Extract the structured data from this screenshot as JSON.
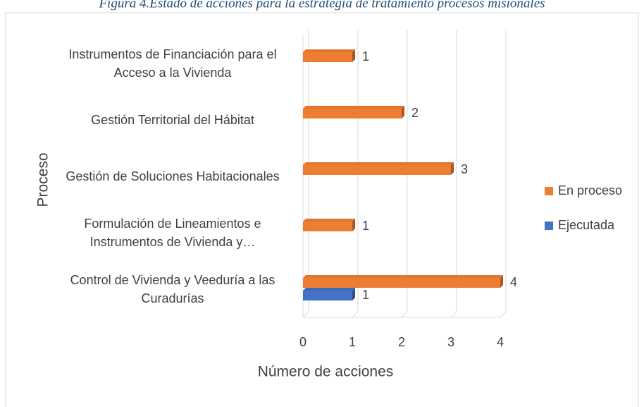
{
  "chart_data": {
    "type": "barh",
    "title": "Figura 4.Estado de acciones para la estrategia de tratamiento procesos misionales",
    "categories": [
      "Control de Vivienda y Veeduría a las Curadurías",
      "Formulación de Lineamientos e Instrumentos de Vivienda y…",
      "Gestión de Soluciones Habitacionales",
      "Gestión Territorial del Hábitat",
      "Instrumentos de Financiación para el Acceso a la Vivienda"
    ],
    "series": [
      {
        "name": "En proceso",
        "color": "#ed7d31",
        "values": [
          4,
          1,
          3,
          2,
          1
        ]
      },
      {
        "name": "Ejecutada",
        "color": "#4472c4",
        "values": [
          1,
          null,
          null,
          null,
          null
        ]
      }
    ],
    "xlabel": "Número de acciones",
    "ylabel": "Proceso",
    "xlim": [
      0,
      4
    ],
    "xticks": [
      0,
      1,
      2,
      3,
      4
    ],
    "grid": true,
    "legend": "right"
  }
}
